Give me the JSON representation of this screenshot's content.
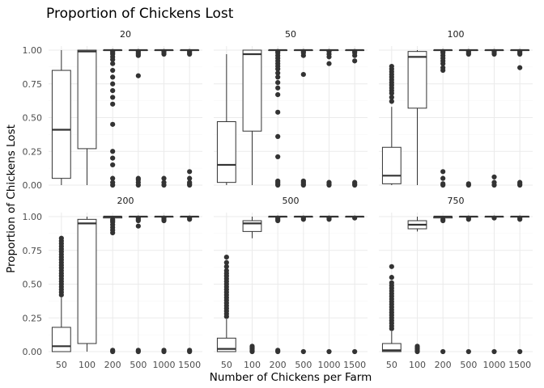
{
  "chart_data": {
    "type": "boxplot",
    "title": "Proportion of Chickens Lost",
    "xlabel": "Number of Chickens per Farm",
    "ylabel": "Proportion of Chickens Lost",
    "categories": [
      "50",
      "100",
      "200",
      "500",
      "1000",
      "1500"
    ],
    "y_ticks": [
      "0.00",
      "0.25",
      "0.50",
      "0.75",
      "1.00"
    ],
    "ylim": [
      0,
      1.03
    ],
    "grid": true,
    "colors": {
      "box_stroke": "#333333",
      "box_fill": "#ffffff",
      "grid": "#ebebeb"
    },
    "facets": [
      {
        "label": "20",
        "boxes": [
          {
            "category": "50",
            "lower": 0.0,
            "q1": 0.05,
            "median": 0.41,
            "q3": 0.85,
            "upper": 1.0,
            "outliers": []
          },
          {
            "category": "100",
            "lower": 0.0,
            "q1": 0.27,
            "median": 0.99,
            "q3": 1.0,
            "upper": 1.0,
            "outliers": []
          },
          {
            "category": "200",
            "lower": 1.0,
            "q1": 1.0,
            "median": 1.0,
            "q3": 1.0,
            "upper": 1.0,
            "outliers": [
              0.0,
              0.02,
              0.05,
              0.15,
              0.2,
              0.25,
              0.45,
              0.6,
              0.65,
              0.7,
              0.75,
              0.8,
              0.85,
              0.9,
              0.93,
              0.95,
              0.97,
              0.98,
              0.99
            ]
          },
          {
            "category": "500",
            "lower": 1.0,
            "q1": 1.0,
            "median": 1.0,
            "q3": 1.0,
            "upper": 1.0,
            "outliers": [
              0.0,
              0.02,
              0.04,
              0.05,
              0.81,
              0.96,
              0.97,
              0.98,
              0.99
            ]
          },
          {
            "category": "1000",
            "lower": 1.0,
            "q1": 1.0,
            "median": 1.0,
            "q3": 1.0,
            "upper": 1.0,
            "outliers": [
              0.0,
              0.02,
              0.05,
              0.97,
              0.98,
              0.99
            ]
          },
          {
            "category": "1500",
            "lower": 1.0,
            "q1": 1.0,
            "median": 1.0,
            "q3": 1.0,
            "upper": 1.0,
            "outliers": [
              0.0,
              0.01,
              0.02,
              0.05,
              0.1,
              0.97,
              0.98,
              0.99
            ]
          }
        ]
      },
      {
        "label": "50",
        "boxes": [
          {
            "category": "50",
            "lower": 0.0,
            "q1": 0.02,
            "median": 0.15,
            "q3": 0.47,
            "upper": 0.97,
            "outliers": []
          },
          {
            "category": "100",
            "lower": 0.0,
            "q1": 0.4,
            "median": 0.97,
            "q3": 1.0,
            "upper": 1.0,
            "outliers": []
          },
          {
            "category": "200",
            "lower": 1.0,
            "q1": 1.0,
            "median": 1.0,
            "q3": 1.0,
            "upper": 1.0,
            "outliers": [
              0.0,
              0.01,
              0.02,
              0.03,
              0.21,
              0.36,
              0.54,
              0.67,
              0.72,
              0.76,
              0.8,
              0.83,
              0.86,
              0.88,
              0.9,
              0.92,
              0.94,
              0.96,
              0.98,
              0.99
            ]
          },
          {
            "category": "500",
            "lower": 1.0,
            "q1": 1.0,
            "median": 1.0,
            "q3": 1.0,
            "upper": 1.0,
            "outliers": [
              0.0,
              0.01,
              0.02,
              0.03,
              0.82,
              0.96,
              0.98,
              0.99
            ]
          },
          {
            "category": "1000",
            "lower": 1.0,
            "q1": 1.0,
            "median": 1.0,
            "q3": 1.0,
            "upper": 1.0,
            "outliers": [
              0.0,
              0.01,
              0.02,
              0.9,
              0.95,
              0.97,
              0.99
            ]
          },
          {
            "category": "1500",
            "lower": 1.0,
            "q1": 1.0,
            "median": 1.0,
            "q3": 1.0,
            "upper": 1.0,
            "outliers": [
              0.0,
              0.01,
              0.02,
              0.92,
              0.96,
              0.98,
              0.99
            ]
          }
        ]
      },
      {
        "label": "100",
        "boxes": [
          {
            "category": "50",
            "lower": 0.0,
            "q1": 0.01,
            "median": 0.07,
            "q3": 0.28,
            "upper": 0.58,
            "outliers": [
              0.62,
              0.65,
              0.68,
              0.7,
              0.72,
              0.74,
              0.76,
              0.78,
              0.8,
              0.82,
              0.84,
              0.86,
              0.88
            ]
          },
          {
            "category": "100",
            "lower": 0.0,
            "q1": 0.57,
            "median": 0.95,
            "q3": 0.99,
            "upper": 1.0,
            "outliers": []
          },
          {
            "category": "200",
            "lower": 1.0,
            "q1": 1.0,
            "median": 1.0,
            "q3": 1.0,
            "upper": 1.0,
            "outliers": [
              0.0,
              0.01,
              0.05,
              0.1,
              0.85,
              0.87,
              0.9,
              0.92,
              0.94,
              0.96,
              0.98,
              0.99
            ]
          },
          {
            "category": "500",
            "lower": 1.0,
            "q1": 1.0,
            "median": 1.0,
            "q3": 1.0,
            "upper": 1.0,
            "outliers": [
              0.0,
              0.01,
              0.97,
              0.98,
              0.99
            ]
          },
          {
            "category": "1000",
            "lower": 1.0,
            "q1": 1.0,
            "median": 1.0,
            "q3": 1.0,
            "upper": 1.0,
            "outliers": [
              0.0,
              0.02,
              0.06,
              0.97,
              0.98,
              0.99
            ]
          },
          {
            "category": "1500",
            "lower": 1.0,
            "q1": 1.0,
            "median": 1.0,
            "q3": 1.0,
            "upper": 1.0,
            "outliers": [
              0.0,
              0.01,
              0.02,
              0.87,
              0.97,
              0.98,
              0.99
            ]
          }
        ]
      },
      {
        "label": "200",
        "boxes": [
          {
            "category": "50",
            "lower": 0.0,
            "q1": 0.0,
            "median": 0.04,
            "q3": 0.18,
            "upper": 0.4,
            "outliers": [
              0.42,
              0.44,
              0.46,
              0.48,
              0.5,
              0.52,
              0.54,
              0.56,
              0.58,
              0.6,
              0.62,
              0.64,
              0.66,
              0.68,
              0.7,
              0.72,
              0.74,
              0.76,
              0.78,
              0.8,
              0.82,
              0.84
            ]
          },
          {
            "category": "100",
            "lower": 0.0,
            "q1": 0.06,
            "median": 0.95,
            "q3": 0.98,
            "upper": 1.0,
            "outliers": []
          },
          {
            "category": "200",
            "lower": 1.0,
            "q1": 0.99,
            "median": 1.0,
            "q3": 1.0,
            "upper": 1.0,
            "outliers": [
              0.0,
              0.01,
              0.88,
              0.9,
              0.92,
              0.94,
              0.96,
              0.97,
              0.98
            ]
          },
          {
            "category": "500",
            "lower": 1.0,
            "q1": 1.0,
            "median": 1.0,
            "q3": 1.0,
            "upper": 1.0,
            "outliers": [
              0.0,
              0.01,
              0.93,
              0.97,
              0.98,
              0.99
            ]
          },
          {
            "category": "1000",
            "lower": 1.0,
            "q1": 1.0,
            "median": 1.0,
            "q3": 1.0,
            "upper": 1.0,
            "outliers": [
              0.0,
              0.01,
              0.97,
              0.98,
              0.99
            ]
          },
          {
            "category": "1500",
            "lower": 1.0,
            "q1": 1.0,
            "median": 1.0,
            "q3": 1.0,
            "upper": 1.0,
            "outliers": [
              0.0,
              0.01,
              0.98,
              0.99
            ]
          }
        ]
      },
      {
        "label": "500",
        "boxes": [
          {
            "category": "50",
            "lower": 0.0,
            "q1": 0.0,
            "median": 0.02,
            "q3": 0.1,
            "upper": 0.24,
            "outliers": [
              0.26,
              0.28,
              0.3,
              0.32,
              0.34,
              0.36,
              0.38,
              0.4,
              0.42,
              0.44,
              0.46,
              0.48,
              0.5,
              0.52,
              0.54,
              0.56,
              0.58,
              0.6,
              0.63,
              0.66,
              0.7
            ]
          },
          {
            "category": "100",
            "lower": 0.84,
            "q1": 0.89,
            "median": 0.95,
            "q3": 0.97,
            "upper": 1.0,
            "outliers": [
              0.0,
              0.01,
              0.02,
              0.03,
              0.04
            ]
          },
          {
            "category": "200",
            "lower": 1.0,
            "q1": 1.0,
            "median": 1.0,
            "q3": 1.0,
            "upper": 1.0,
            "outliers": [
              0.0,
              0.01,
              0.97,
              0.98,
              0.99
            ]
          },
          {
            "category": "500",
            "lower": 1.0,
            "q1": 1.0,
            "median": 1.0,
            "q3": 1.0,
            "upper": 1.0,
            "outliers": [
              0.0,
              0.98,
              0.99
            ]
          },
          {
            "category": "1000",
            "lower": 1.0,
            "q1": 1.0,
            "median": 1.0,
            "q3": 1.0,
            "upper": 1.0,
            "outliers": [
              0.0,
              0.98,
              0.99
            ]
          },
          {
            "category": "1500",
            "lower": 1.0,
            "q1": 1.0,
            "median": 1.0,
            "q3": 1.0,
            "upper": 1.0,
            "outliers": [
              0.0,
              0.99
            ]
          }
        ]
      },
      {
        "label": "750",
        "boxes": [
          {
            "category": "50",
            "lower": 0.0,
            "q1": 0.0,
            "median": 0.01,
            "q3": 0.06,
            "upper": 0.15,
            "outliers": [
              0.17,
              0.19,
              0.21,
              0.23,
              0.25,
              0.27,
              0.29,
              0.31,
              0.33,
              0.35,
              0.37,
              0.39,
              0.41,
              0.43,
              0.45,
              0.47,
              0.49,
              0.51,
              0.55,
              0.63
            ]
          },
          {
            "category": "100",
            "lower": 0.89,
            "q1": 0.91,
            "median": 0.94,
            "q3": 0.97,
            "upper": 1.0,
            "outliers": [
              0.0,
              0.01,
              0.02,
              0.03,
              0.04
            ]
          },
          {
            "category": "200",
            "lower": 1.0,
            "q1": 0.99,
            "median": 1.0,
            "q3": 1.0,
            "upper": 1.0,
            "outliers": [
              0.0,
              0.97,
              0.98
            ]
          },
          {
            "category": "500",
            "lower": 1.0,
            "q1": 1.0,
            "median": 1.0,
            "q3": 1.0,
            "upper": 1.0,
            "outliers": [
              0.0,
              0.98,
              0.99
            ]
          },
          {
            "category": "1000",
            "lower": 1.0,
            "q1": 1.0,
            "median": 1.0,
            "q3": 1.0,
            "upper": 1.0,
            "outliers": [
              0.0,
              0.99
            ]
          },
          {
            "category": "1500",
            "lower": 1.0,
            "q1": 1.0,
            "median": 1.0,
            "q3": 1.0,
            "upper": 1.0,
            "outliers": [
              0.0,
              0.98,
              0.99
            ]
          }
        ]
      }
    ]
  }
}
